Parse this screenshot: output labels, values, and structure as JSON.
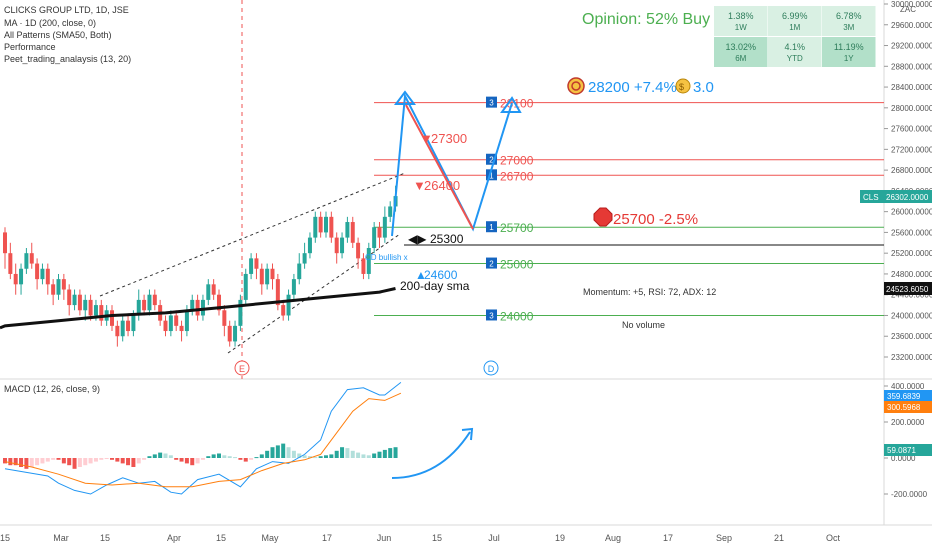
{
  "header": {
    "title": "CLICKS GROUP LTD, 1D, JSE",
    "indicators": [
      "MA · 1D (200, close, 0)",
      "All Patterns (SMA50, Both)",
      "Performance",
      "Peet_trading_analaysis (13, 20)"
    ]
  },
  "opinion": "Opinion: 52% Buy",
  "performance": [
    {
      "value": "1.38%",
      "period": "1W",
      "color": "#d9f0e3"
    },
    {
      "value": "6.99%",
      "period": "1M",
      "color": "#d9f0e3"
    },
    {
      "value": "6.78%",
      "period": "3M",
      "color": "#d9f0e3"
    },
    {
      "value": "13.02%",
      "period": "6M",
      "color": "#b2e0c9"
    },
    {
      "value": "4.1%",
      "period": "YTD",
      "color": "#d9f0e3"
    },
    {
      "value": "11.19%",
      "period": "1Y",
      "color": "#b2e0c9"
    }
  ],
  "price_axis": {
    "currency": "ZAC",
    "ticks": [
      "30000.0000",
      "29600.0000",
      "29200.0000",
      "28800.0000",
      "28400.0000",
      "28000.0000",
      "27600.0000",
      "27200.0000",
      "26800.0000",
      "26400.0000",
      "26000.0000",
      "25600.0000",
      "25200.0000",
      "24800.0000",
      "24400.0000",
      "24000.0000",
      "23600.0000",
      "23200.0000"
    ],
    "last_price_label": "CLS",
    "last_price": "26302.0000",
    "sma_price": "24523.6050"
  },
  "macd": {
    "title": "MACD (12, 26, close, 9)",
    "ticks": [
      "400.0000",
      "200.0000",
      "0.0000",
      "-200.0000"
    ],
    "macd_value": "359.6839",
    "signal_value": "300.5968",
    "hist_value": "59.0871",
    "colors": {
      "macd": "#2196f3",
      "signal": "#ff7f0e",
      "hist_pos": "#26a69a",
      "hist_pos_weak": "#b2dfdb",
      "hist_neg": "#ef5350",
      "hist_neg_weak": "#ffcdd2"
    }
  },
  "time_axis": [
    "15",
    "Mar",
    "15",
    "Apr",
    "15",
    "May",
    "17",
    "Jun",
    "15",
    "Jul",
    "19",
    "Aug",
    "17",
    "Sep",
    "21",
    "Oct"
  ],
  "annotations": {
    "target": "28200 +7.4%",
    "target_ratio": "3.0",
    "stop": "25700 -2.5%",
    "level_25300": "25300",
    "level_24600": "24600",
    "arrow_27300": "27300",
    "arrow_26400": "26400",
    "sma_label": "200-day sma",
    "pattern_label": "CD bullish x",
    "momentum": "Momentum: +5, RSI: 72, ADX: 12",
    "volume": "No volume",
    "event_e": "E",
    "event_d": "D"
  },
  "levels": [
    {
      "num": "3",
      "price": "28100",
      "kind": "resistance"
    },
    {
      "num": "2",
      "price": "27000",
      "kind": "resistance"
    },
    {
      "num": "1",
      "price": "26700",
      "kind": "resistance"
    },
    {
      "num": "1",
      "price": "25700",
      "kind": "support"
    },
    {
      "num": "2",
      "price": "25000",
      "kind": "support"
    },
    {
      "num": "3",
      "price": "24000",
      "kind": "support"
    }
  ],
  "chart_data": {
    "type": "candlestick",
    "title": "CLICKS GROUP LTD, 1D, JSE",
    "ylim": [
      23000,
      30000
    ],
    "candles": [
      [
        25600,
        25200,
        25700,
        24900
      ],
      [
        25200,
        24800,
        25400,
        24700
      ],
      [
        24800,
        24600,
        25000,
        24400
      ],
      [
        24600,
        24900,
        25000,
        24400
      ],
      [
        24900,
        25200,
        25300,
        24800
      ],
      [
        25200,
        25000,
        25400,
        24900
      ],
      [
        25000,
        24700,
        25100,
        24500
      ],
      [
        24700,
        24900,
        25000,
        24600
      ],
      [
        24900,
        24600,
        25000,
        24400
      ],
      [
        24600,
        24400,
        24700,
        24200
      ],
      [
        24400,
        24700,
        24800,
        24300
      ],
      [
        24700,
        24500,
        24800,
        24300
      ],
      [
        24500,
        24200,
        24600,
        24000
      ],
      [
        24200,
        24400,
        24500,
        24100
      ],
      [
        24400,
        24100,
        24500,
        24000
      ],
      [
        24100,
        24300,
        24400,
        23900
      ],
      [
        24300,
        24000,
        24400,
        23900
      ],
      [
        24000,
        24200,
        24300,
        23900
      ],
      [
        24200,
        23900,
        24300,
        23800
      ],
      [
        23900,
        24100,
        24200,
        23800
      ],
      [
        24100,
        23800,
        24200,
        23700
      ],
      [
        23800,
        23600,
        23900,
        23400
      ],
      [
        23600,
        23900,
        24000,
        23500
      ],
      [
        23900,
        23700,
        24000,
        23600
      ],
      [
        23700,
        24000,
        24100,
        23600
      ],
      [
        24000,
        24300,
        24500,
        23900
      ],
      [
        24300,
        24100,
        24400,
        24000
      ],
      [
        24100,
        24400,
        24500,
        24000
      ],
      [
        24400,
        24200,
        24500,
        24100
      ],
      [
        24200,
        23900,
        24300,
        23800
      ],
      [
        23900,
        23700,
        24000,
        23600
      ],
      [
        23700,
        24000,
        24100,
        23600
      ],
      [
        24000,
        23800,
        24100,
        23700
      ],
      [
        23800,
        23700,
        23900,
        23500
      ],
      [
        23700,
        24100,
        24200,
        23600
      ],
      [
        24100,
        24300,
        24400,
        24000
      ],
      [
        24300,
        24000,
        24400,
        23900
      ],
      [
        24000,
        24300,
        24400,
        23900
      ],
      [
        24300,
        24600,
        24700,
        24200
      ],
      [
        24600,
        24400,
        24700,
        24300
      ],
      [
        24400,
        24100,
        24500,
        24000
      ],
      [
        24100,
        23800,
        24200,
        23600
      ],
      [
        23800,
        23500,
        23900,
        23400
      ],
      [
        23500,
        23800,
        23900,
        23400
      ],
      [
        23800,
        24300,
        24400,
        23700
      ],
      [
        24300,
        24800,
        24900,
        24200
      ],
      [
        24800,
        25100,
        25200,
        24700
      ],
      [
        25100,
        24900,
        25200,
        24700
      ],
      [
        24900,
        24600,
        25000,
        24400
      ],
      [
        24600,
        24900,
        25000,
        24500
      ],
      [
        24900,
        24700,
        25000,
        24500
      ],
      [
        24700,
        24200,
        24800,
        24100
      ],
      [
        24200,
        24000,
        24300,
        23900
      ],
      [
        24000,
        24400,
        24500,
        23900
      ],
      [
        24400,
        24700,
        24800,
        24300
      ],
      [
        24700,
        25000,
        25200,
        24600
      ],
      [
        25000,
        25200,
        25400,
        24900
      ],
      [
        25200,
        25500,
        25600,
        25100
      ],
      [
        25500,
        25900,
        26000,
        25400
      ],
      [
        25900,
        25600,
        26000,
        25500
      ],
      [
        25600,
        25900,
        26000,
        25500
      ],
      [
        25900,
        25500,
        26000,
        25400
      ],
      [
        25500,
        25200,
        25600,
        25000
      ],
      [
        25200,
        25500,
        25600,
        25100
      ],
      [
        25500,
        25800,
        25900,
        25400
      ],
      [
        25800,
        25400,
        25900,
        25300
      ],
      [
        25400,
        25100,
        25500,
        24900
      ],
      [
        25100,
        24800,
        25200,
        24700
      ],
      [
        24800,
        25300,
        25400,
        24700
      ],
      [
        25300,
        25700,
        25800,
        25200
      ],
      [
        25700,
        25500,
        25800,
        25300
      ],
      [
        25500,
        25900,
        26100,
        25400
      ],
      [
        25900,
        26100,
        26200,
        25800
      ],
      [
        26100,
        26300,
        26500,
        26000
      ]
    ],
    "sma200": [
      [
        0,
        23800
      ],
      [
        10,
        23900
      ],
      [
        20,
        24000
      ],
      [
        30,
        24050
      ],
      [
        40,
        24150
      ],
      [
        50,
        24250
      ],
      [
        60,
        24350
      ],
      [
        70,
        24450
      ],
      [
        73,
        24520
      ]
    ],
    "macd_line": [
      [
        0,
        -60
      ],
      [
        4,
        -80
      ],
      [
        8,
        -100
      ],
      [
        10,
        -140
      ],
      [
        13,
        -180
      ],
      [
        16,
        -200
      ],
      [
        19,
        -150
      ],
      [
        22,
        -110
      ],
      [
        25,
        -140
      ],
      [
        28,
        -130
      ],
      [
        31,
        -190
      ],
      [
        33,
        -200
      ],
      [
        36,
        -120
      ],
      [
        40,
        -90
      ],
      [
        44,
        -160
      ],
      [
        47,
        -60
      ],
      [
        50,
        -20
      ],
      [
        53,
        -30
      ],
      [
        56,
        20
      ],
      [
        59,
        100
      ],
      [
        61,
        260
      ],
      [
        64,
        380
      ],
      [
        67,
        390
      ],
      [
        70,
        350
      ],
      [
        71,
        350
      ],
      [
        74,
        420
      ]
    ],
    "signal_line": [
      [
        0,
        -20
      ],
      [
        5,
        -50
      ],
      [
        10,
        -90
      ],
      [
        15,
        -140
      ],
      [
        20,
        -150
      ],
      [
        25,
        -140
      ],
      [
        30,
        -160
      ],
      [
        35,
        -160
      ],
      [
        40,
        -130
      ],
      [
        44,
        -120
      ],
      [
        48,
        -70
      ],
      [
        52,
        -30
      ],
      [
        56,
        -10
      ],
      [
        59,
        20
      ],
      [
        62,
        140
      ],
      [
        65,
        260
      ],
      [
        68,
        330
      ],
      [
        71,
        320
      ],
      [
        74,
        360
      ]
    ],
    "histogram": [
      -30,
      -40,
      -40,
      -50,
      -60,
      -50,
      -40,
      -30,
      -20,
      -10,
      -10,
      -30,
      -40,
      -60,
      -50,
      -40,
      -30,
      -20,
      -10,
      -5,
      -10,
      -20,
      -30,
      -40,
      -50,
      -30,
      -10,
      10,
      20,
      30,
      25,
      15,
      -10,
      -20,
      -30,
      -40,
      -30,
      -10,
      10,
      20,
      25,
      15,
      10,
      5,
      -10,
      -20,
      -10,
      5,
      20,
      40,
      60,
      70,
      80,
      60,
      40,
      25,
      15,
      10,
      5,
      10,
      15,
      20,
      40,
      60,
      55,
      40,
      30,
      20,
      15,
      25,
      35,
      45,
      55,
      60
    ]
  }
}
